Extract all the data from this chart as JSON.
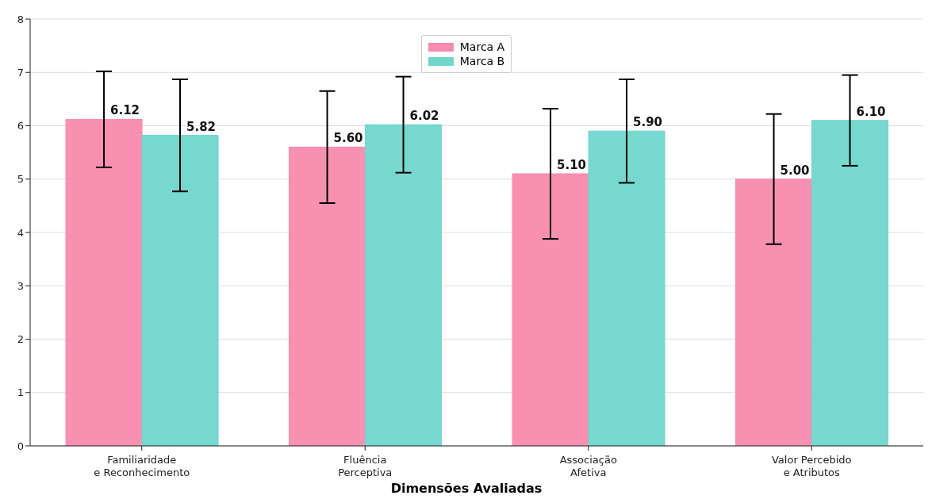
{
  "chart_data": {
    "type": "bar",
    "xlabel": "Dimensões Avaliadas",
    "categories": [
      "Familiaridade\ne Reconhecimento",
      "Fluência\nPerceptiva",
      "Associação\nAfetiva",
      "Valor Percebido\ne Atributos"
    ],
    "series": [
      {
        "name": "Marca A",
        "color": "#f78aad",
        "values": [
          6.12,
          5.6,
          5.1,
          5.0
        ],
        "errors": [
          0.9,
          1.05,
          1.22,
          1.22
        ],
        "value_labels": [
          "6.12",
          "5.60",
          "5.10",
          "5.00"
        ]
      },
      {
        "name": "Marca B",
        "color": "#6fd6cc",
        "values": [
          5.82,
          6.02,
          5.9,
          6.1
        ],
        "errors": [
          1.05,
          0.9,
          0.97,
          0.85
        ],
        "value_labels": [
          "5.82",
          "6.02",
          "5.90",
          "6.10"
        ]
      }
    ],
    "ylim": [
      0,
      8
    ],
    "yticks": [
      0,
      1,
      2,
      3,
      4,
      5,
      6,
      7,
      8
    ],
    "grid": "y",
    "legend": "top"
  }
}
